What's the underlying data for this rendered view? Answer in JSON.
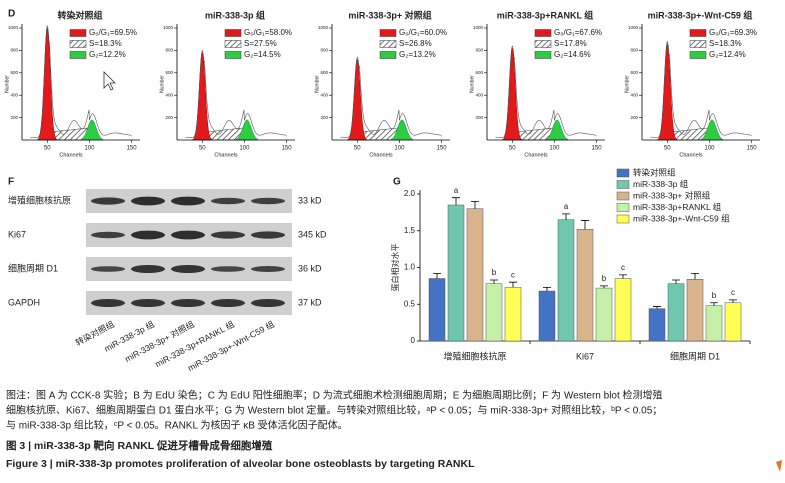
{
  "panel_d": {
    "label": "D",
    "x_label": "Channels",
    "y_label": "Number",
    "xlim": [
      20,
      160
    ],
    "xticks": [
      50,
      100,
      150
    ],
    "ylim": [
      0,
      1000
    ],
    "yticks": [
      200,
      400,
      600,
      800,
      1000
    ],
    "panels": [
      {
        "title": "转染对照组",
        "g1": "G₀/G₁=69.5%",
        "s": "S=18.3%",
        "g2": "G₂=12.2%"
      },
      {
        "title": "miR-338-3p 组",
        "g1": "G₀/G₁=58.0%",
        "s": "S=27.5%",
        "g2": "G₂=14.5%"
      },
      {
        "title": "miR-338-3p+ 对照组",
        "g1": "G₀/G₁=60.0%",
        "s": "S=26.8%",
        "g2": "G₂=13.2%"
      },
      {
        "title": "miR-338-3p+RANKL 组",
        "g1": "G₀/G₁=67.6%",
        "s": "S=17.8%",
        "g2": "G₂=14.6%"
      },
      {
        "title": "miR-338-3p+-Wnt-C59 组",
        "g1": "G₀/G₁=69.3%",
        "s": "S=18.3%",
        "g2": "G₂=12.4%"
      }
    ]
  },
  "panel_f": {
    "label": "F",
    "rows": [
      {
        "name": "增殖细胞核抗原",
        "size": "33 kD"
      },
      {
        "name": "Ki67",
        "size": "345 kD"
      },
      {
        "name": "细胞周期 D1",
        "size": "36 kD"
      },
      {
        "name": "GAPDH",
        "size": "37 kD"
      }
    ],
    "lanes": [
      "转染对照组",
      "miR-338-3p 组",
      "miR-338-3p+ 对照组",
      "miR-338-3p+RANKL 组",
      "miR-338-3p+-Wnt-C59 组"
    ]
  },
  "chart_data": {
    "type": "bar",
    "label": "G",
    "y_label": "蛋白相对水平",
    "categories": [
      "增殖细胞核抗原",
      "Ki67",
      "细胞周期 D1"
    ],
    "ylim": [
      0,
      2
    ],
    "yticks": [
      0,
      {
        "value": 0.5,
        "label": "0.5"
      },
      {
        "value": 1,
        "label": "1.0"
      },
      {
        "value": 1.5,
        "label": "1.5"
      },
      {
        "value": 2,
        "label": "2.0"
      }
    ],
    "series": [
      {
        "name": "转染对照组",
        "color": "#4472c4",
        "values": [
          0.85,
          0.68,
          0.44
        ],
        "errors": [
          0.07,
          0.05,
          0.03
        ],
        "labels": [
          null,
          null,
          null
        ]
      },
      {
        "name": "miR-338-3p 组",
        "color": "#6fc7b0",
        "values": [
          1.85,
          1.65,
          0.78
        ],
        "errors": [
          0.1,
          0.08,
          0.05
        ],
        "labels": [
          "a",
          "a",
          null
        ]
      },
      {
        "name": "miR-338-3p+ 对照组",
        "color": "#d9b38c",
        "values": [
          1.8,
          1.52,
          0.84
        ],
        "errors": [
          0.1,
          0.12,
          0.08
        ],
        "labels": [
          null,
          null,
          null
        ]
      },
      {
        "name": "miR-338-3p+RANKL 组",
        "color": "#c6f0a8",
        "values": [
          0.78,
          0.72,
          0.48
        ],
        "errors": [
          0.05,
          0.03,
          0.04
        ],
        "labels": [
          "b",
          "b",
          "b"
        ]
      },
      {
        "name": "miR-338-3p+-Wnt-C59 组",
        "color": "#ffff55",
        "values": [
          0.73,
          0.85,
          0.52
        ],
        "errors": [
          0.07,
          0.05,
          0.04
        ],
        "labels": [
          "c",
          "c",
          "c"
        ]
      }
    ]
  },
  "caption": {
    "lines": [
      "图注：图 A 为 CCK-8 实验；B 为 EdU 染色；C 为 EdU 阳性细胞率；D 为流式细胞术检测细胞周期；E 为细胞周期比例；F 为 Western blot 检测增殖",
      "细胞核抗原、Ki67、细胞周期蛋白 D1 蛋白水平；G 为 Western blot 定量。与转染对照组比较，ᵃP < 0.05；与 miR-338-3p+ 对照组比较，ᵇP < 0.05；",
      "与 miR-338-3p 组比较，ᶜP < 0.05。RANKL 为核因子 κB 受体活化因子配体。"
    ]
  },
  "figure_title": {
    "zh": "图 3 | miR-338-3p 靶向 RANKL 促进牙槽骨成骨细胞增殖",
    "en": "Figure 3 | miR-338-3p promotes proliferation of alveolar bone osteoblasts by targeting RANKL"
  }
}
